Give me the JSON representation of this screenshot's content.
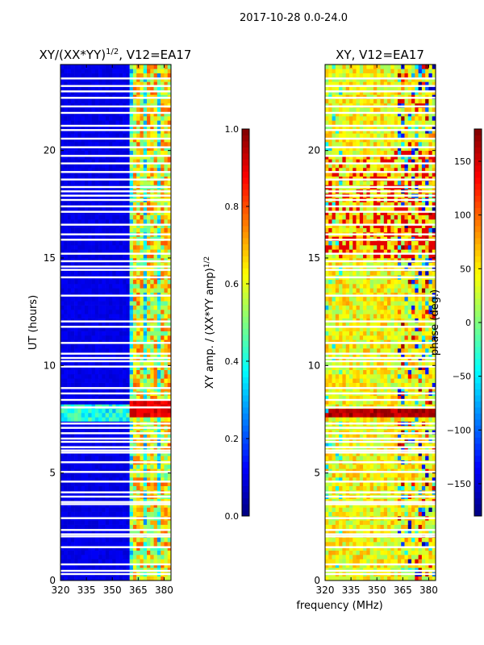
{
  "suptitle": "2017-10-28 0.0-24.0",
  "chart_data": [
    {
      "type": "heatmap",
      "title": "XY/(XX*YY)^{1/2}, V12=EA17",
      "title_main": "XY/(XX*YY)",
      "title_sup": "1/2",
      "title_tail": ", V12=EA17",
      "xlabel": "",
      "ylabel": "UT (hours)",
      "xlim": [
        320,
        384
      ],
      "ylim": [
        0,
        24
      ],
      "xticks": [
        "320",
        "335",
        "350",
        "365",
        "380"
      ],
      "xtick_values": [
        320,
        335,
        350,
        365,
        380
      ],
      "yticks": [
        "0",
        "5",
        "10",
        "15",
        "20"
      ],
      "ytick_values": [
        0,
        5,
        10,
        15,
        20
      ],
      "colorbar": {
        "label": "XY amp. / (XX*YY amp)^{1/2}",
        "label_main": "XY amp. / (XX*YY amp)",
        "label_sup": "1/2",
        "range": [
          0,
          1
        ],
        "ticks": [
          "0.0",
          "0.2",
          "0.4",
          "0.6",
          "0.8",
          "1.0"
        ],
        "tick_values": [
          0,
          0.2,
          0.4,
          0.6,
          0.8,
          1.0
        ],
        "colormap": "jet"
      },
      "description_values": {
        "low_band_mean": 0.05,
        "high_band_mean": 0.5,
        "high_band_start_mhz": 360,
        "bright_event_hours": [
          7.6,
          8.4
        ],
        "bright_event_value": 0.9
      }
    },
    {
      "type": "heatmap",
      "title": "XY, V12=EA17",
      "xlabel": "frequency (MHz)",
      "ylabel": "",
      "xlim": [
        320,
        384
      ],
      "ylim": [
        0,
        24
      ],
      "xticks": [
        "320",
        "335",
        "350",
        "365",
        "380"
      ],
      "xtick_values": [
        320,
        335,
        350,
        365,
        380
      ],
      "yticks": [
        "0",
        "5",
        "10",
        "15",
        "20"
      ],
      "ytick_values": [
        0,
        5,
        10,
        15,
        20
      ],
      "colorbar": {
        "label": "phase (deg.)",
        "range": [
          -180,
          180
        ],
        "ticks": [
          "150",
          "100",
          "50",
          "0",
          "−50",
          "−100",
          "−150"
        ],
        "tick_values": [
          150,
          100,
          50,
          0,
          -50,
          -100,
          -150
        ],
        "colormap": "jet"
      },
      "description_values": {
        "typical_phase_deg": 60,
        "noisy_band_start_mhz": 360
      }
    }
  ],
  "flagged_hours": [
    0.3,
    0.45,
    0.75,
    1.55,
    2.05,
    2.15,
    2.35,
    2.9,
    3.55,
    3.65,
    3.9,
    4.1,
    4.6,
    5.05,
    5.5,
    5.95,
    6.05,
    6.2,
    6.45,
    6.6,
    6.85,
    7.1,
    7.3,
    8.05,
    8.4,
    8.7,
    8.95,
    9.95,
    10.2,
    10.35,
    10.55,
    11.05,
    11.8,
    12.05,
    13.25,
    14.1,
    14.45,
    14.6,
    14.85,
    15.2,
    15.85,
    16.1,
    16.55,
    17.15,
    17.4,
    17.7,
    17.9,
    18.1,
    18.3,
    18.65,
    19.0,
    19.4,
    19.75,
    20.15,
    20.55,
    20.95,
    21.15,
    21.75,
    22.05,
    22.45,
    22.75,
    23.0,
    23.35
  ]
}
